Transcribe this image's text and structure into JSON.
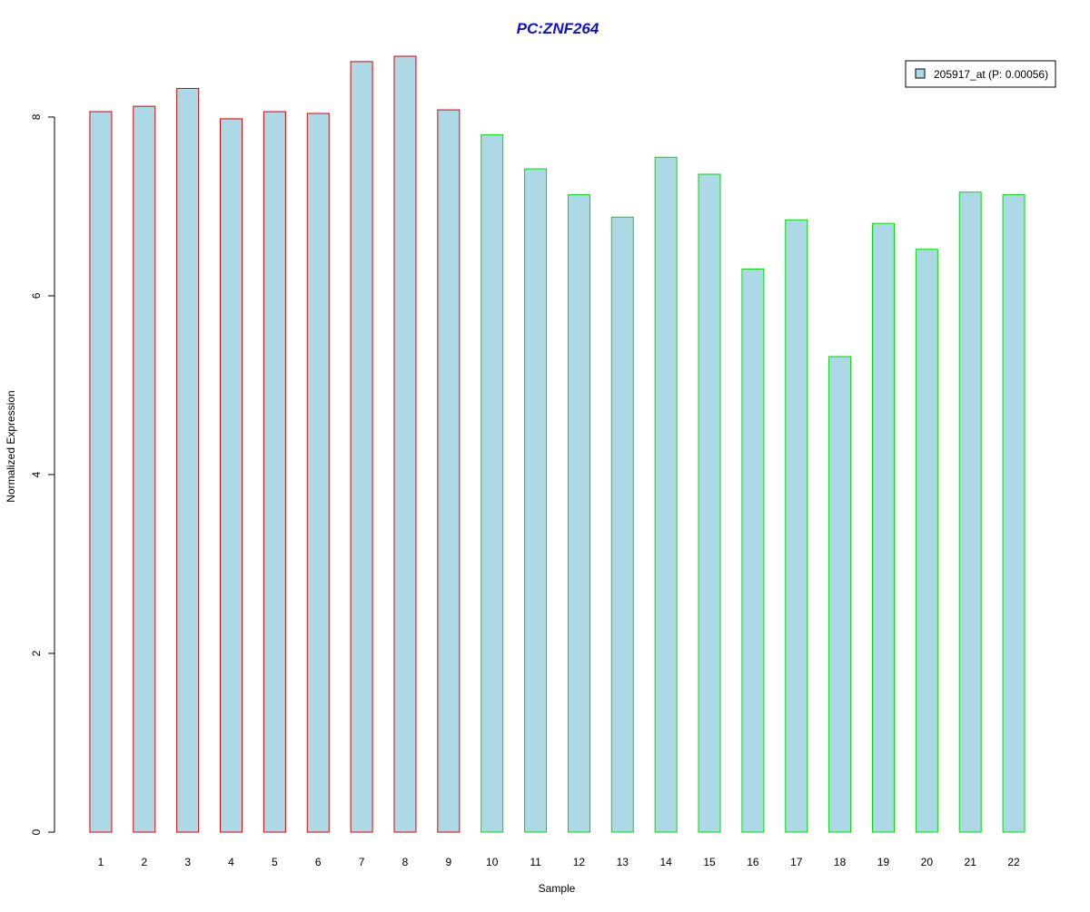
{
  "chart_data": {
    "type": "bar",
    "title": "PC:ZNF264",
    "xlabel": "Sample",
    "ylabel": "Normalized Expression",
    "categories": [
      "1",
      "2",
      "3",
      "4",
      "5",
      "6",
      "7",
      "8",
      "9",
      "10",
      "11",
      "12",
      "13",
      "14",
      "15",
      "16",
      "17",
      "18",
      "19",
      "20",
      "21",
      "22"
    ],
    "series": [
      {
        "name": "205917_at (P: 0.00056)",
        "values": [
          8.06,
          8.12,
          8.32,
          7.98,
          8.06,
          8.04,
          8.62,
          8.68,
          8.08,
          7.8,
          7.42,
          7.13,
          6.88,
          7.55,
          7.36,
          6.3,
          6.85,
          5.32,
          6.81,
          6.52,
          7.16,
          7.13
        ]
      }
    ],
    "group_border_colors": [
      "#dd0000",
      "#dd0000",
      "#dd0000",
      "#dd0000",
      "#dd0000",
      "#dd0000",
      "#dd0000",
      "#dd0000",
      "#dd0000",
      "#00dd00",
      "#00dd00",
      "#00dd00",
      "#00dd00",
      "#00dd00",
      "#00dd00",
      "#00dd00",
      "#00dd00",
      "#00dd00",
      "#00dd00",
      "#00dd00",
      "#00dd00",
      "#00dd00"
    ],
    "yticks": [
      0,
      2,
      4,
      6,
      8
    ],
    "ylim": [
      0,
      8.7
    ],
    "grid": false,
    "legend_position": "top-right",
    "colors": {
      "title": "#1010c8",
      "bar_fill": "#add8e6",
      "text": "#000000"
    }
  }
}
